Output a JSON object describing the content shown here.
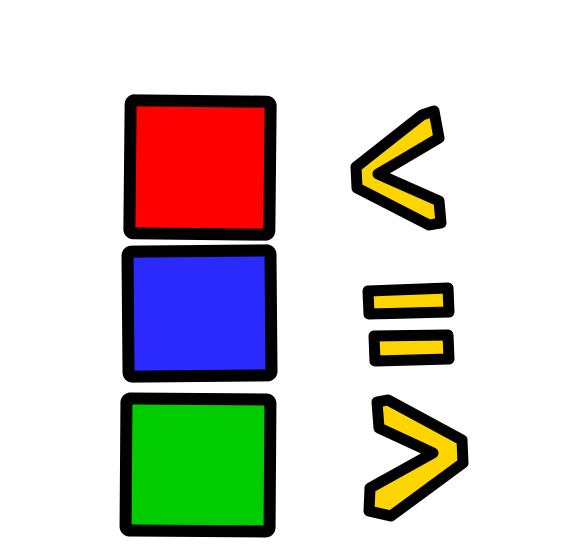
{
  "squares": [
    {
      "name": "red",
      "color": "#ff0000"
    },
    {
      "name": "blue",
      "color": "#2a2aff"
    },
    {
      "name": "green",
      "color": "#00cc00"
    }
  ],
  "symbols": [
    {
      "icon": "less-than-icon"
    },
    {
      "icon": "equals-icon"
    },
    {
      "icon": "greater-than-icon"
    }
  ],
  "colors": {
    "symbol_fill": "#ffd500",
    "outline": "#000000",
    "background": "#ffffff"
  }
}
